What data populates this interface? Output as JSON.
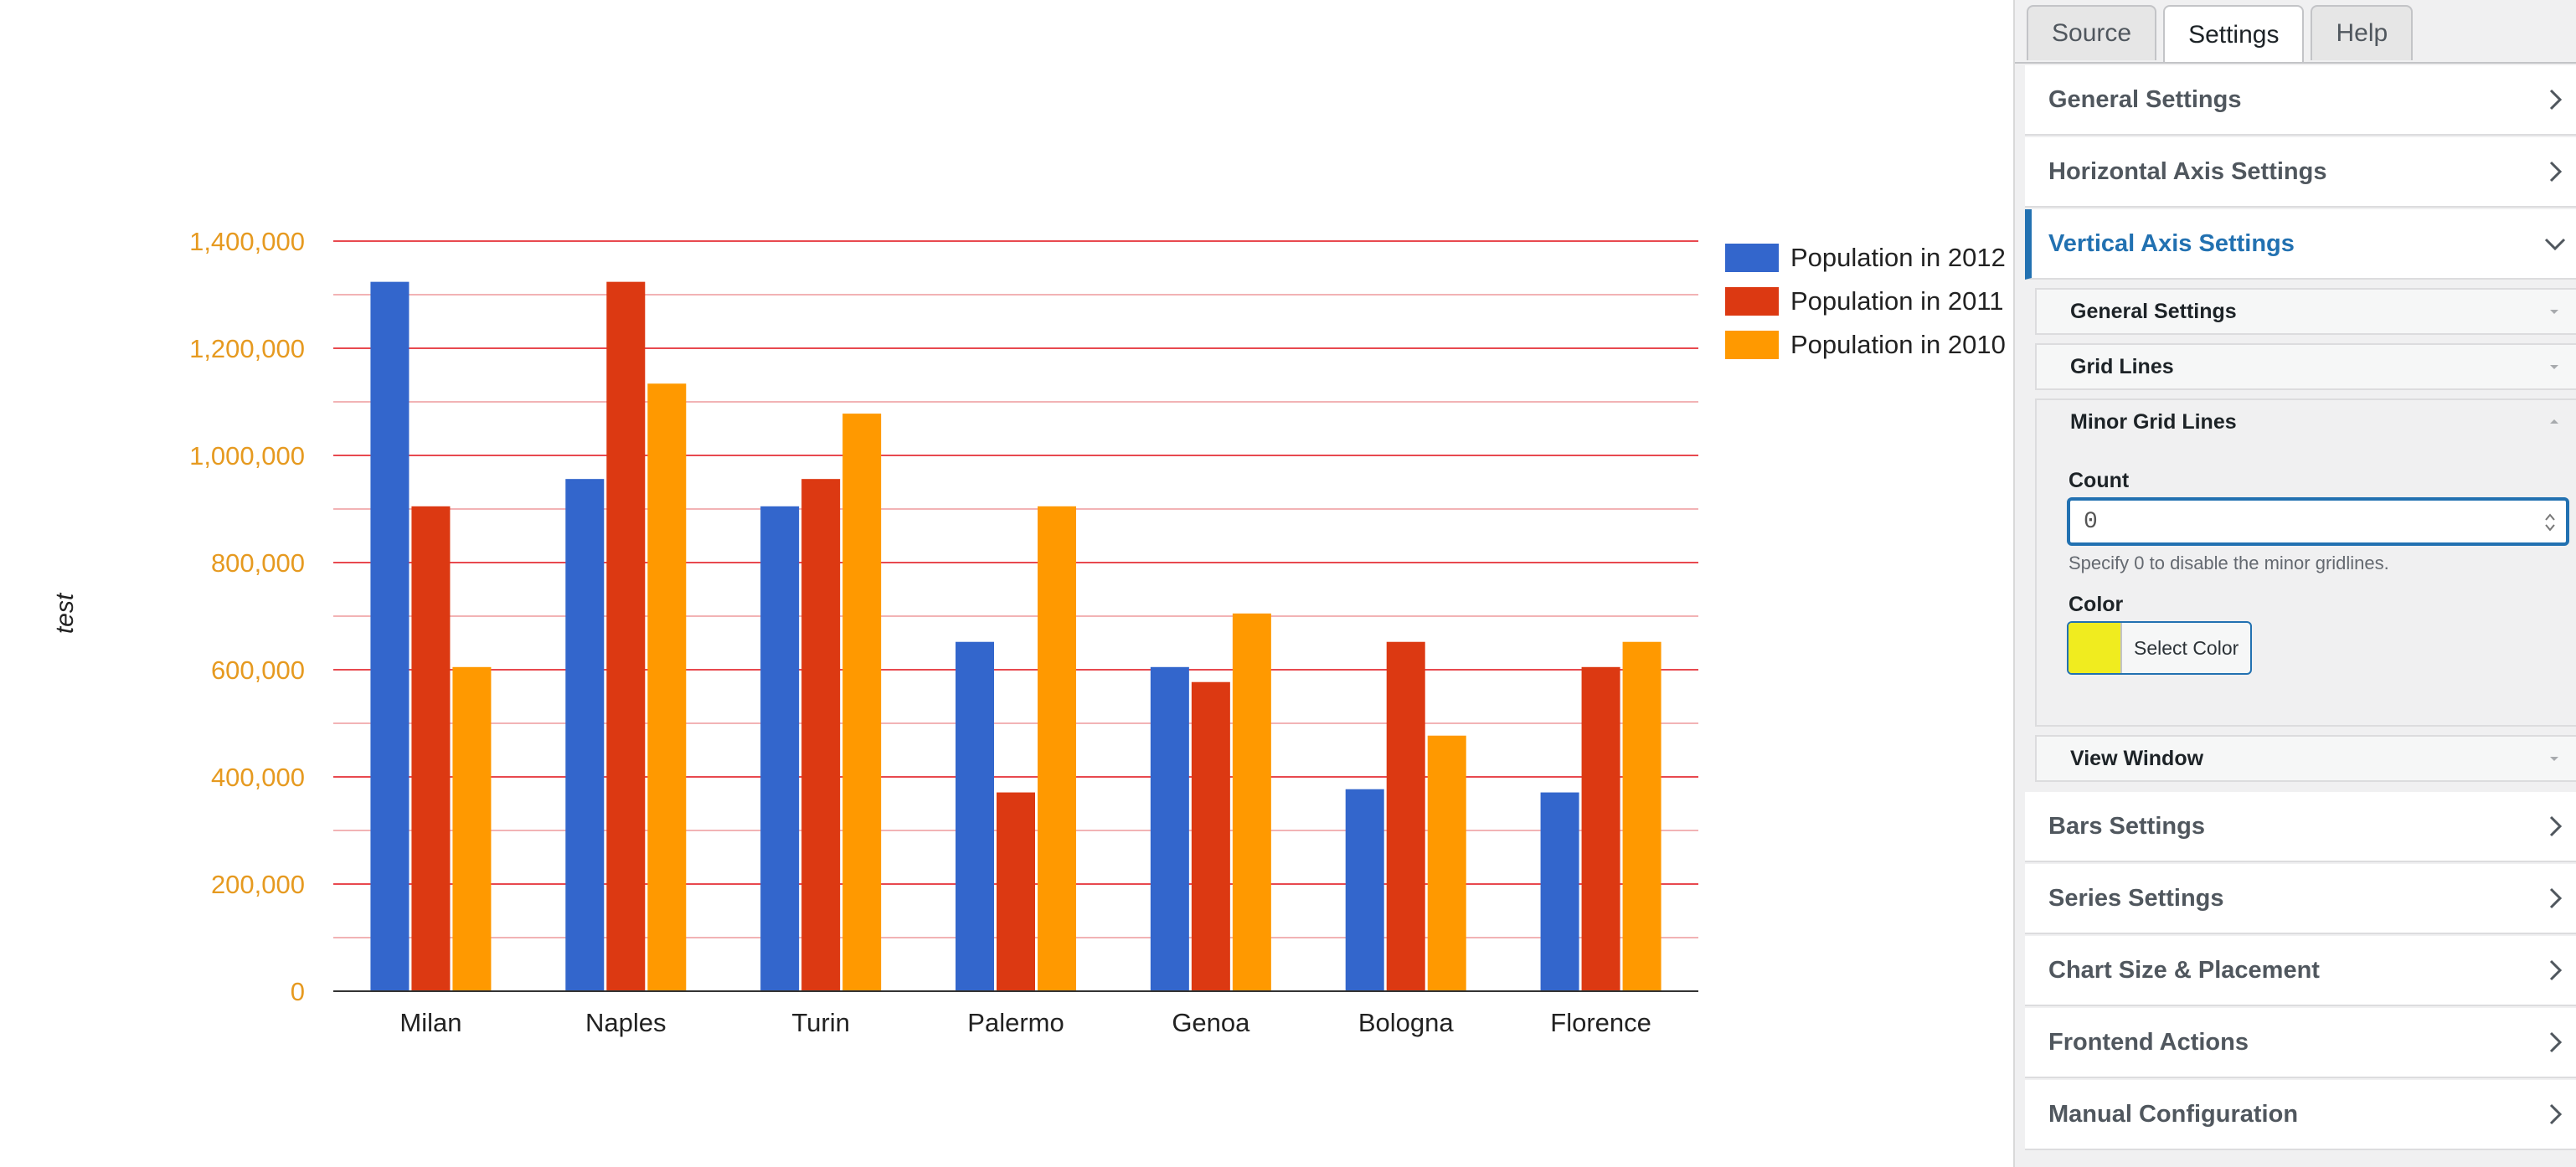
{
  "chart_data": {
    "type": "bar",
    "title": "",
    "xlabel": "",
    "ylabel": "test",
    "ylim": [
      0,
      1400000
    ],
    "y_ticks": [
      "0",
      "200,000",
      "400,000",
      "600,000",
      "800,000",
      "1,000,000",
      "1,200,000",
      "1,400,000"
    ],
    "gridlines": true,
    "minor_gridlines": true,
    "legend_position": "right",
    "categories": [
      "Milan",
      "Naples",
      "Turin",
      "Palermo",
      "Genoa",
      "Bologna",
      "Florence"
    ],
    "series": [
      {
        "name": "Population in 2012",
        "color": "#3366cc",
        "values": [
          1324000,
          956000,
          905000,
          652000,
          605000,
          377000,
          371000
        ]
      },
      {
        "name": "Population in 2011",
        "color": "#dc3912",
        "values": [
          905000,
          1324000,
          956000,
          371000,
          577000,
          652000,
          605000
        ]
      },
      {
        "name": "Population in 2010",
        "color": "#ff9900",
        "values": [
          605000,
          1134000,
          1078000,
          905000,
          705000,
          477000,
          652000
        ]
      }
    ],
    "colors": {
      "axis_labels": "#e69a20",
      "major_grid": "#e8494f",
      "minor_grid": "#f2b3b5"
    }
  },
  "panel": {
    "tabs": [
      {
        "label": "Source",
        "active": false
      },
      {
        "label": "Settings",
        "active": true
      },
      {
        "label": "Help",
        "active": false
      }
    ],
    "sections": [
      {
        "label": "General Settings",
        "expanded": false
      },
      {
        "label": "Horizontal Axis Settings",
        "expanded": false
      },
      {
        "label": "Vertical Axis Settings",
        "expanded": true
      },
      {
        "label": "Bars Settings",
        "expanded": false
      },
      {
        "label": "Series Settings",
        "expanded": false
      },
      {
        "label": "Chart Size & Placement",
        "expanded": false
      },
      {
        "label": "Frontend Actions",
        "expanded": false
      },
      {
        "label": "Manual Configuration",
        "expanded": false
      }
    ],
    "subsections": [
      {
        "label": "General Settings",
        "expanded": false
      },
      {
        "label": "Grid Lines",
        "expanded": false
      },
      {
        "label": "Minor Grid Lines",
        "expanded": true
      },
      {
        "label": "View Window",
        "expanded": false
      }
    ],
    "minor_grid": {
      "count_label": "Count",
      "count_value": "0",
      "count_hint": "Specify 0 to disable the minor gridlines.",
      "color_label": "Color",
      "color_value": "#f0ec1f",
      "select_color_label": "Select Color"
    },
    "accent_color": "#2271b1",
    "icons": {
      "collapsed": "chevron-right-icon",
      "expanded": "chevron-down-icon",
      "sub_collapsed": "caret-down-icon",
      "sub_expanded": "caret-up-icon"
    }
  }
}
